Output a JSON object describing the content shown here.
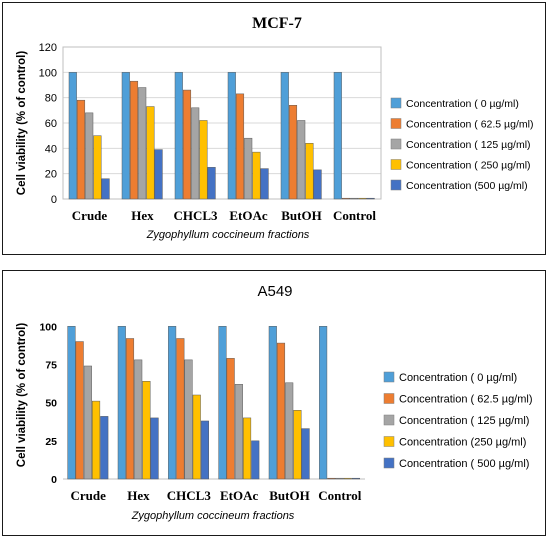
{
  "chart_data": [
    {
      "type": "bar",
      "title": "MCF-7",
      "ylabel": "Cell viability (% of control)",
      "xlabel": "Zygophyllum coccineum fractions",
      "ylim": [
        0,
        120
      ],
      "yticks": [
        0,
        20,
        40,
        60,
        80,
        100,
        120
      ],
      "grid": true,
      "legend_position": "right",
      "categories": [
        "Crude",
        "Hex",
        "CHCL3",
        "EtOAc",
        "ButOH",
        "Control"
      ],
      "series": [
        {
          "name": "Concentration ( 0 µg/ml)",
          "color": "#4F9FD8",
          "values": [
            100,
            100,
            100,
            100,
            100,
            100
          ]
        },
        {
          "name": "Concentration ( 62.5 µg/ml)",
          "color": "#ED7D31",
          "values": [
            78,
            93,
            86,
            83,
            74,
            0.5
          ]
        },
        {
          "name": "Concentration ( 125 µg/ml)",
          "color": "#A5A5A5",
          "values": [
            68,
            88,
            72,
            48,
            62,
            0.5
          ]
        },
        {
          "name": "Concentration ( 250 µg/ml)",
          "color": "#FFC000",
          "values": [
            50,
            73,
            62,
            37,
            44,
            0.5
          ]
        },
        {
          "name": "Concentration (500 µg/ml)",
          "color": "#4472C4",
          "values": [
            16,
            39,
            25,
            24,
            23,
            0.5
          ]
        }
      ]
    },
    {
      "type": "bar",
      "title": "A549",
      "ylabel": "Cell viability (% of control)",
      "xlabel": "Zygophyllum coccineum fractions",
      "ylim": [
        0,
        110
      ],
      "yticks": [
        0,
        25,
        50,
        75,
        100
      ],
      "grid": false,
      "legend_position": "right",
      "categories": [
        "Crude",
        "Hex",
        "CHCL3",
        "EtOAc",
        "ButOH",
        "Control"
      ],
      "series": [
        {
          "name": "Concentration ( 0 µg/ml)",
          "color": "#4F9FD8",
          "values": [
            100,
            100,
            100,
            100,
            100,
            100
          ]
        },
        {
          "name": "Concentration ( 62.5 µg/ml)",
          "color": "#ED7D31",
          "values": [
            90,
            92,
            92,
            79,
            89,
            0.5
          ]
        },
        {
          "name": "Concentration ( 125 µg/ml)",
          "color": "#A5A5A5",
          "values": [
            74,
            78,
            78,
            62,
            63,
            0.5
          ]
        },
        {
          "name": "Concentration (250 µg/ml)",
          "color": "#FFC000",
          "values": [
            51,
            64,
            55,
            40,
            45,
            0.5
          ]
        },
        {
          "name": "Concentration ( 500 µg/ml)",
          "color": "#4472C4",
          "values": [
            41,
            40,
            38,
            25,
            33,
            0.5
          ]
        }
      ]
    }
  ]
}
